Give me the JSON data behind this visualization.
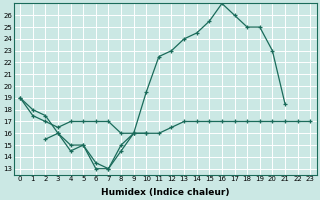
{
  "xlabel": "Humidex (Indice chaleur)",
  "bg_color": "#cbe8e4",
  "grid_color": "#ffffff",
  "line_color": "#1a6b5a",
  "ylim": [
    12.5,
    27.0
  ],
  "xlim": [
    -0.5,
    23.5
  ],
  "yticks": [
    13,
    14,
    15,
    16,
    17,
    18,
    19,
    20,
    21,
    22,
    23,
    24,
    25,
    26
  ],
  "xticks": [
    0,
    1,
    2,
    3,
    4,
    5,
    6,
    7,
    8,
    9,
    10,
    11,
    12,
    13,
    14,
    15,
    16,
    17,
    18,
    19,
    20,
    21,
    22,
    23
  ],
  "line_top": [
    19,
    18,
    17.5,
    16,
    15,
    15,
    13.5,
    13,
    15,
    16,
    19.5,
    22.5,
    23,
    24,
    24.5,
    25.5,
    27,
    26,
    25,
    25,
    23,
    18.5,
    null,
    null
  ],
  "line_mid": [
    19,
    17.5,
    17,
    16.5,
    17,
    17,
    17,
    17,
    16,
    16,
    16,
    16,
    16.5,
    17,
    17,
    17,
    17,
    17,
    17,
    17,
    17,
    17,
    17,
    17
  ],
  "line_bot_x": [
    2,
    3,
    4,
    5,
    6,
    7,
    8,
    9,
    10
  ],
  "line_bot_y": [
    15.5,
    16,
    14.5,
    15,
    13,
    13,
    14.5,
    16,
    16
  ],
  "xlabel_fontsize": 6.5,
  "tick_fontsize": 5.0
}
